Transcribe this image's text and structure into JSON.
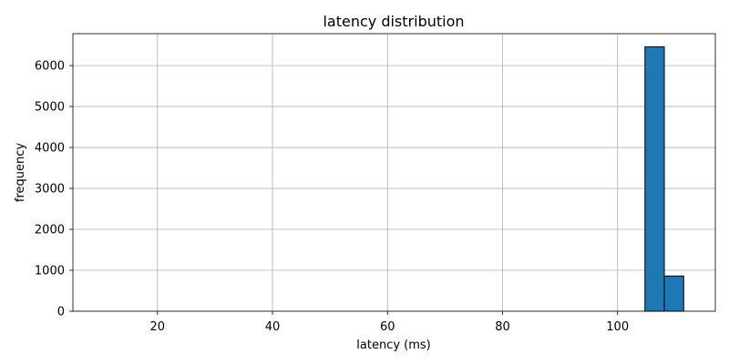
{
  "chart_data": {
    "type": "bar",
    "subtype": "histogram",
    "title": "latency distribution",
    "xlabel": "latency (ms)",
    "ylabel": "frequency",
    "xlim": [
      5.3,
      117.0
    ],
    "ylim": [
      0,
      6780
    ],
    "xticks": [
      20,
      40,
      60,
      80,
      100
    ],
    "yticks": [
      0,
      1000,
      2000,
      3000,
      4000,
      5000,
      6000
    ],
    "grid": true,
    "bar_color": "#1f77b4",
    "edge_color": "#000000",
    "bins": [
      {
        "x0": 10.4,
        "x1": 13.77,
        "value": 0
      },
      {
        "x0": 13.77,
        "x1": 17.14,
        "value": 0
      },
      {
        "x0": 17.14,
        "x1": 20.51,
        "value": 0
      },
      {
        "x0": 20.51,
        "x1": 23.88,
        "value": 0
      },
      {
        "x0": 23.88,
        "x1": 27.25,
        "value": 0
      },
      {
        "x0": 27.25,
        "x1": 30.62,
        "value": 0
      },
      {
        "x0": 30.62,
        "x1": 33.99,
        "value": 0
      },
      {
        "x0": 33.99,
        "x1": 37.36,
        "value": 0
      },
      {
        "x0": 37.36,
        "x1": 40.73,
        "value": 0
      },
      {
        "x0": 40.73,
        "x1": 44.1,
        "value": 0
      },
      {
        "x0": 44.1,
        "x1": 47.47,
        "value": 0
      },
      {
        "x0": 47.47,
        "x1": 50.84,
        "value": 0
      },
      {
        "x0": 50.84,
        "x1": 54.21,
        "value": 0
      },
      {
        "x0": 54.21,
        "x1": 57.58,
        "value": 0
      },
      {
        "x0": 57.58,
        "x1": 60.95,
        "value": 0
      },
      {
        "x0": 60.95,
        "x1": 64.32,
        "value": 0
      },
      {
        "x0": 64.32,
        "x1": 67.69,
        "value": 0
      },
      {
        "x0": 67.69,
        "x1": 71.06,
        "value": 0
      },
      {
        "x0": 71.06,
        "x1": 74.43,
        "value": 0
      },
      {
        "x0": 74.43,
        "x1": 77.8,
        "value": 0
      },
      {
        "x0": 77.8,
        "x1": 81.17,
        "value": 0
      },
      {
        "x0": 81.17,
        "x1": 84.54,
        "value": 0
      },
      {
        "x0": 84.54,
        "x1": 87.91,
        "value": 0
      },
      {
        "x0": 87.91,
        "x1": 91.28,
        "value": 0
      },
      {
        "x0": 91.28,
        "x1": 94.65,
        "value": 0
      },
      {
        "x0": 94.65,
        "x1": 98.02,
        "value": 0
      },
      {
        "x0": 98.02,
        "x1": 101.39,
        "value": 0
      },
      {
        "x0": 101.39,
        "x1": 104.76,
        "value": 0
      },
      {
        "x0": 104.76,
        "x1": 108.13,
        "value": 6460
      },
      {
        "x0": 108.13,
        "x1": 111.5,
        "value": 860
      }
    ]
  }
}
